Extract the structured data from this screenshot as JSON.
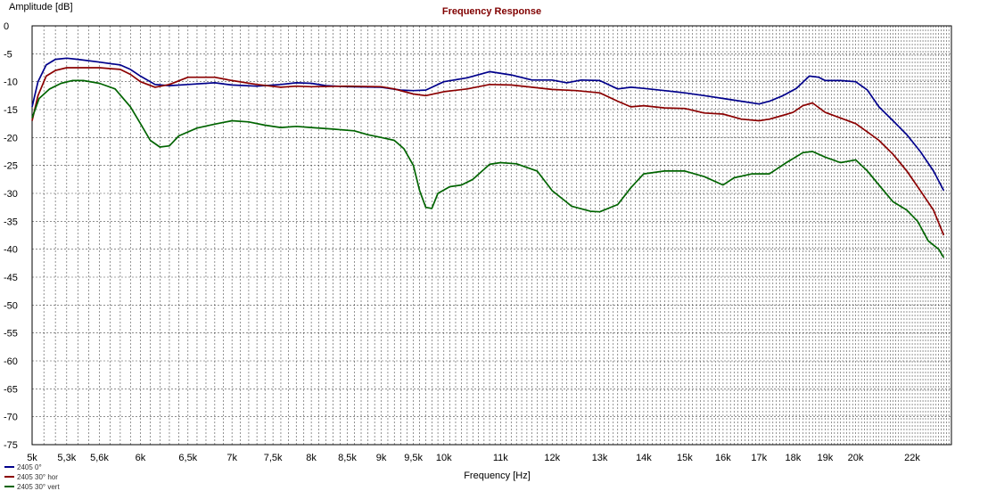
{
  "chart_data": {
    "type": "line",
    "title": "Frequency Response",
    "xlabel": "Frequency [Hz]",
    "ylabel": "Amplitude [dB]",
    "x_scale": "log",
    "xlim": [
      5000,
      23500
    ],
    "ylim": [
      -75,
      0
    ],
    "grid": true,
    "legend_position": "bottom-left",
    "x_tick_values": [
      5000,
      5300,
      5600,
      6000,
      6500,
      7000,
      7500,
      8000,
      8500,
      9000,
      9500,
      10000,
      11000,
      12000,
      13000,
      14000,
      15000,
      16000,
      17000,
      18000,
      19000,
      20000,
      22000
    ],
    "x_tick_labels": [
      "5k",
      "5,3k",
      "5,6k",
      "6k",
      "6,5k",
      "7k",
      "7,5k",
      "8k",
      "8,5k",
      "9k",
      "9,5k",
      "10k",
      "11k",
      "12k",
      "13k",
      "14k",
      "15k",
      "16k",
      "17k",
      "18k",
      "19k",
      "20k",
      "22k"
    ],
    "y_ticks": [
      0,
      -5,
      -10,
      -15,
      -20,
      -25,
      -30,
      -35,
      -40,
      -45,
      -50,
      -55,
      -60,
      -65,
      -70,
      -75
    ],
    "series": [
      {
        "name": "2405 0°",
        "color": "#00008b",
        "points": [
          [
            5000,
            -14.5
          ],
          [
            5050,
            -10
          ],
          [
            5120,
            -7
          ],
          [
            5200,
            -6
          ],
          [
            5300,
            -5.8
          ],
          [
            5400,
            -6
          ],
          [
            5600,
            -6.5
          ],
          [
            5800,
            -7
          ],
          [
            5900,
            -7.8
          ],
          [
            6000,
            -9
          ],
          [
            6150,
            -10.5
          ],
          [
            6300,
            -10.7
          ],
          [
            6500,
            -10.5
          ],
          [
            6800,
            -10.2
          ],
          [
            7000,
            -10.6
          ],
          [
            7300,
            -10.8
          ],
          [
            7600,
            -10.5
          ],
          [
            7800,
            -10.2
          ],
          [
            8000,
            -10.3
          ],
          [
            8200,
            -10.7
          ],
          [
            8500,
            -10.9
          ],
          [
            9000,
            -11
          ],
          [
            9300,
            -11.5
          ],
          [
            9500,
            -11.6
          ],
          [
            9700,
            -11.5
          ],
          [
            10000,
            -10
          ],
          [
            10400,
            -9.3
          ],
          [
            10800,
            -8.2
          ],
          [
            11200,
            -8.8
          ],
          [
            11600,
            -9.7
          ],
          [
            12000,
            -9.7
          ],
          [
            12300,
            -10.2
          ],
          [
            12600,
            -9.7
          ],
          [
            13000,
            -9.8
          ],
          [
            13400,
            -11.3
          ],
          [
            13700,
            -11
          ],
          [
            14000,
            -11.2
          ],
          [
            14500,
            -11.6
          ],
          [
            15000,
            -12
          ],
          [
            15500,
            -12.5
          ],
          [
            16000,
            -13
          ],
          [
            16500,
            -13.5
          ],
          [
            17000,
            -14
          ],
          [
            17300,
            -13.5
          ],
          [
            17700,
            -12.5
          ],
          [
            18100,
            -11.2
          ],
          [
            18500,
            -9
          ],
          [
            18800,
            -9.2
          ],
          [
            19000,
            -9.8
          ],
          [
            19500,
            -9.8
          ],
          [
            20000,
            -10
          ],
          [
            20400,
            -11.5
          ],
          [
            20800,
            -14.5
          ],
          [
            21300,
            -17
          ],
          [
            21800,
            -19.5
          ],
          [
            22300,
            -22.5
          ],
          [
            22800,
            -26
          ],
          [
            23200,
            -29.5
          ]
        ]
      },
      {
        "name": "2405 30° hor",
        "color": "#8b0000",
        "points": [
          [
            5000,
            -17
          ],
          [
            5050,
            -12.5
          ],
          [
            5120,
            -9
          ],
          [
            5200,
            -8
          ],
          [
            5300,
            -7.5
          ],
          [
            5400,
            -7.5
          ],
          [
            5600,
            -7.5
          ],
          [
            5800,
            -7.8
          ],
          [
            5900,
            -8.7
          ],
          [
            6000,
            -10
          ],
          [
            6150,
            -11
          ],
          [
            6300,
            -10.5
          ],
          [
            6500,
            -9.2
          ],
          [
            6800,
            -9.2
          ],
          [
            7000,
            -9.8
          ],
          [
            7300,
            -10.5
          ],
          [
            7600,
            -11
          ],
          [
            7800,
            -10.8
          ],
          [
            8000,
            -10.9
          ],
          [
            8500,
            -10.8
          ],
          [
            9000,
            -10.9
          ],
          [
            9200,
            -11.3
          ],
          [
            9500,
            -12.2
          ],
          [
            9700,
            -12.5
          ],
          [
            10000,
            -11.8
          ],
          [
            10400,
            -11.3
          ],
          [
            10800,
            -10.5
          ],
          [
            11200,
            -10.6
          ],
          [
            11600,
            -11
          ],
          [
            12000,
            -11.4
          ],
          [
            12500,
            -11.6
          ],
          [
            13000,
            -12
          ],
          [
            13400,
            -13.5
          ],
          [
            13700,
            -14.5
          ],
          [
            14000,
            -14.3
          ],
          [
            14500,
            -14.7
          ],
          [
            15000,
            -14.8
          ],
          [
            15500,
            -15.6
          ],
          [
            16000,
            -15.8
          ],
          [
            16500,
            -16.7
          ],
          [
            17000,
            -17
          ],
          [
            17300,
            -16.7
          ],
          [
            17600,
            -16.2
          ],
          [
            18000,
            -15.5
          ],
          [
            18300,
            -14.3
          ],
          [
            18600,
            -13.8
          ],
          [
            19000,
            -15.5
          ],
          [
            19500,
            -16.5
          ],
          [
            20000,
            -17.5
          ],
          [
            20400,
            -19
          ],
          [
            20800,
            -20.5
          ],
          [
            21300,
            -23
          ],
          [
            21800,
            -26
          ],
          [
            22300,
            -29.5
          ],
          [
            22800,
            -33
          ],
          [
            23200,
            -37.5
          ]
        ]
      },
      {
        "name": "2405 30° vert",
        "color": "#006400",
        "points": [
          [
            5000,
            -16.5
          ],
          [
            5060,
            -13
          ],
          [
            5150,
            -11.3
          ],
          [
            5250,
            -10.3
          ],
          [
            5350,
            -9.8
          ],
          [
            5450,
            -9.8
          ],
          [
            5600,
            -10.3
          ],
          [
            5750,
            -11.3
          ],
          [
            5900,
            -14.5
          ],
          [
            6000,
            -17.5
          ],
          [
            6100,
            -20.5
          ],
          [
            6200,
            -21.7
          ],
          [
            6300,
            -21.5
          ],
          [
            6400,
            -19.7
          ],
          [
            6600,
            -18.3
          ],
          [
            6800,
            -17.6
          ],
          [
            7000,
            -17
          ],
          [
            7200,
            -17.2
          ],
          [
            7400,
            -17.8
          ],
          [
            7600,
            -18.2
          ],
          [
            7800,
            -18
          ],
          [
            8000,
            -18.2
          ],
          [
            8300,
            -18.5
          ],
          [
            8600,
            -18.8
          ],
          [
            8800,
            -19.5
          ],
          [
            9000,
            -20
          ],
          [
            9200,
            -20.5
          ],
          [
            9350,
            -22
          ],
          [
            9500,
            -25
          ],
          [
            9600,
            -29.5
          ],
          [
            9700,
            -32.5
          ],
          [
            9800,
            -32.7
          ],
          [
            9900,
            -30
          ],
          [
            10100,
            -28.8
          ],
          [
            10300,
            -28.5
          ],
          [
            10500,
            -27.5
          ],
          [
            10800,
            -24.8
          ],
          [
            11000,
            -24.5
          ],
          [
            11300,
            -24.7
          ],
          [
            11700,
            -26
          ],
          [
            12000,
            -29.5
          ],
          [
            12400,
            -32.3
          ],
          [
            12800,
            -33.2
          ],
          [
            13000,
            -33.3
          ],
          [
            13400,
            -32
          ],
          [
            13700,
            -29
          ],
          [
            14000,
            -26.5
          ],
          [
            14500,
            -26
          ],
          [
            15000,
            -26
          ],
          [
            15500,
            -27
          ],
          [
            16000,
            -28.5
          ],
          [
            16300,
            -27.2
          ],
          [
            16800,
            -26.5
          ],
          [
            17300,
            -26.5
          ],
          [
            17800,
            -24.5
          ],
          [
            18300,
            -22.7
          ],
          [
            18600,
            -22.5
          ],
          [
            19000,
            -23.5
          ],
          [
            19500,
            -24.5
          ],
          [
            20000,
            -24
          ],
          [
            20400,
            -26
          ],
          [
            20800,
            -28.5
          ],
          [
            21300,
            -31.5
          ],
          [
            21800,
            -33
          ],
          [
            22200,
            -35
          ],
          [
            22600,
            -38.5
          ],
          [
            23000,
            -40
          ],
          [
            23200,
            -41.5
          ]
        ]
      }
    ]
  }
}
